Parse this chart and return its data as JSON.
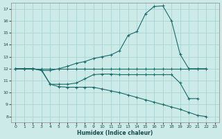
{
  "xlabel": "Humidex (Indice chaleur)",
  "background_color": "#cceae7",
  "grid_color": "#aad4d0",
  "line_color": "#1a6b6b",
  "xlim": [
    -0.5,
    23.5
  ],
  "ylim": [
    7.5,
    17.5
  ],
  "xticks": [
    0,
    1,
    2,
    3,
    4,
    5,
    6,
    7,
    8,
    9,
    10,
    11,
    12,
    13,
    14,
    15,
    16,
    17,
    18,
    19,
    20,
    21,
    22,
    23
  ],
  "yticks": [
    8,
    9,
    10,
    11,
    12,
    13,
    14,
    15,
    16,
    17
  ],
  "line1_x": [
    0,
    1,
    2,
    3,
    4,
    5,
    6,
    7,
    8,
    9,
    10,
    11,
    12,
    13,
    14,
    15,
    16,
    17,
    18,
    19,
    20,
    21,
    22
  ],
  "line1_y": [
    12,
    12,
    12,
    12,
    12,
    12,
    12,
    12,
    12,
    12,
    12,
    12,
    12,
    12,
    12,
    12,
    12,
    12,
    12,
    12,
    12,
    12,
    12
  ],
  "line2_x": [
    0,
    1,
    2,
    3,
    4,
    5,
    6,
    7,
    8,
    9,
    10,
    11,
    12,
    13,
    14,
    15,
    16,
    17,
    18,
    19,
    20,
    21,
    22
  ],
  "line2_y": [
    12,
    12,
    12,
    11.85,
    11.85,
    12.0,
    12.2,
    12.45,
    12.6,
    12.85,
    13.0,
    13.15,
    13.5,
    14.8,
    15.1,
    16.6,
    17.2,
    17.25,
    16.0,
    13.2,
    12.0,
    12.0,
    12.0
  ],
  "line3_x": [
    0,
    1,
    2,
    3,
    4,
    5,
    6,
    7,
    8,
    9,
    10,
    11,
    12,
    13,
    14,
    15,
    16,
    17,
    18,
    19,
    20,
    21,
    22
  ],
  "line3_y": [
    12,
    12,
    12,
    11.9,
    10.7,
    10.7,
    10.7,
    10.8,
    11.15,
    11.5,
    11.55,
    11.55,
    11.5,
    11.5,
    11.5,
    11.5,
    11.5,
    11.5,
    11.5,
    10.8,
    9.5,
    9.5,
    null
  ],
  "line4_x": [
    0,
    1,
    2,
    3,
    4,
    5,
    6,
    7,
    8,
    9,
    10,
    11,
    12,
    13,
    14,
    15,
    16,
    17,
    18,
    19,
    20,
    21,
    22
  ],
  "line4_y": [
    12,
    12,
    12,
    11.85,
    10.7,
    10.5,
    10.45,
    10.45,
    10.45,
    10.45,
    10.3,
    10.15,
    10.0,
    9.8,
    9.6,
    9.4,
    9.2,
    9.0,
    8.8,
    8.6,
    8.35,
    8.1,
    8.0
  ]
}
